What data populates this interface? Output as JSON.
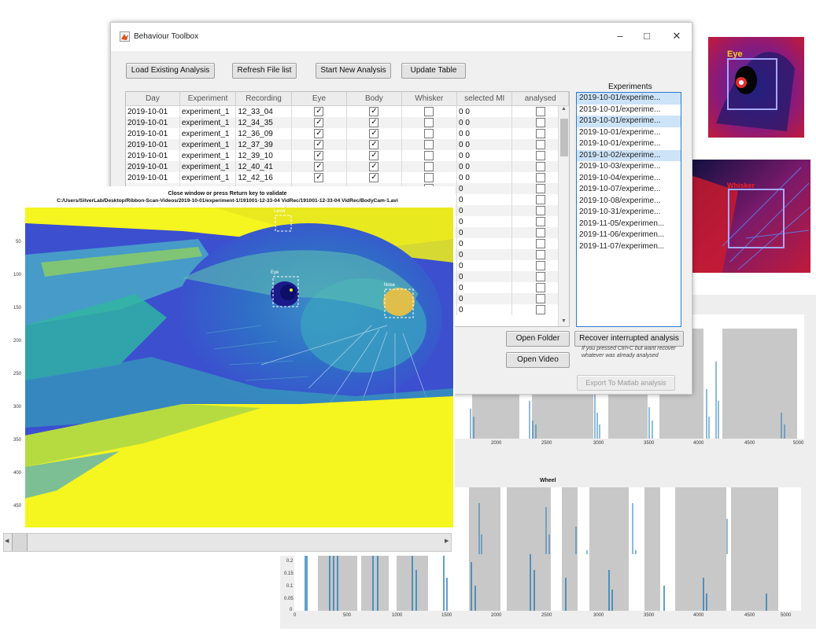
{
  "toolbox": {
    "title": "Behaviour Toolbox",
    "buttons": {
      "load": "Load Existing Analysis",
      "refresh": "Refresh File list",
      "start": "Start New Analysis",
      "update": "Update Table",
      "open_folder": "Open Folder",
      "open_video": "Open Video",
      "recover": "Recover interrupted analysis",
      "export": "Export To Matlab analysis"
    },
    "recover_note": "If you pressed Ctrl+C but want recover whatever was already analysed",
    "table": {
      "headers": [
        "Day",
        "Experiment",
        "Recording",
        "Eye",
        "Body",
        "Whisker",
        "selected MI",
        "analysed"
      ],
      "rows": [
        {
          "day": "2019-10-01",
          "experiment": "experiment_1",
          "recording": "12_33_04",
          "eye": "✓",
          "body": "✓",
          "whisker": "",
          "mi": "0 0",
          "analysed": ""
        },
        {
          "day": "2019-10-01",
          "experiment": "experiment_1",
          "recording": "12_34_35",
          "eye": "✓",
          "body": "✓",
          "whisker": "",
          "mi": "0 0",
          "analysed": ""
        },
        {
          "day": "2019-10-01",
          "experiment": "experiment_1",
          "recording": "12_36_09",
          "eye": "✓",
          "body": "✓",
          "whisker": "",
          "mi": "0 0",
          "analysed": ""
        },
        {
          "day": "2019-10-01",
          "experiment": "experiment_1",
          "recording": "12_37_39",
          "eye": "✓",
          "body": "✓",
          "whisker": "",
          "mi": "0 0",
          "analysed": ""
        },
        {
          "day": "2019-10-01",
          "experiment": "experiment_1",
          "recording": "12_39_10",
          "eye": "✓",
          "body": "✓",
          "whisker": "",
          "mi": "0 0",
          "analysed": ""
        },
        {
          "day": "2019-10-01",
          "experiment": "experiment_1",
          "recording": "12_40_41",
          "eye": "✓",
          "body": "✓",
          "whisker": "",
          "mi": "0 0",
          "analysed": ""
        },
        {
          "day": "2019-10-01",
          "experiment": "experiment_1",
          "recording": "12_42_16",
          "eye": "✓",
          "body": "✓",
          "whisker": "",
          "mi": "0 0",
          "analysed": ""
        }
      ],
      "hidden_mi": [
        "0",
        "0",
        "0",
        "0",
        "0",
        "0",
        "0",
        "0",
        "0",
        "0",
        "0",
        "0"
      ]
    },
    "experiments": {
      "title": "Experiments",
      "items": [
        {
          "label": "2019-10-01/experime...",
          "selected": true
        },
        {
          "label": "2019-10-01/experime...",
          "selected": false
        },
        {
          "label": "2019-10-01/experime...",
          "selected": true
        },
        {
          "label": "2019-10-01/experime...",
          "selected": false
        },
        {
          "label": "2019-10-01/experime...",
          "selected": false
        },
        {
          "label": "2019-10-02/experime...",
          "selected": true
        },
        {
          "label": "2019-10-03/experime...",
          "selected": false
        },
        {
          "label": "2019-10-04/experime...",
          "selected": false
        },
        {
          "label": "2019-10-07/experime...",
          "selected": false
        },
        {
          "label": "2019-10-08/experime...",
          "selected": false
        },
        {
          "label": "2019-10-31/experime...",
          "selected": false
        },
        {
          "label": "2019-11-05/experimen...",
          "selected": false
        },
        {
          "label": "2019-11-06/experimen...",
          "selected": false
        },
        {
          "label": "2019-11-07/experimen...",
          "selected": false
        }
      ]
    }
  },
  "viewer": {
    "title": "Close window or press Return key to validate",
    "path": "C:/Users/SilverLab/Desktop/Ribbon-Scan-Videos/2019-10-01/experiment-1/191001-12-33-04 VidRec/191001-12-33-04 VidRec/BodyCam-1.avi",
    "y_ticks": [
      "50",
      "100",
      "150",
      "200",
      "250",
      "300",
      "350",
      "400",
      "450"
    ],
    "roi_labels": {
      "eye": "Eye",
      "nose": "Nose",
      "lever": "Lever"
    }
  },
  "thumbnails": {
    "eye_label": "Eye",
    "whisker_label": "Whisker"
  },
  "plots": {
    "top_x_ticks": [
      "2000",
      "2500",
      "3000",
      "3500",
      "4000",
      "4500",
      "5000"
    ],
    "wheel_title": "Wheel",
    "bottom_x_ticks": [
      "0",
      "500",
      "1000",
      "1500",
      "2000",
      "2500",
      "3000",
      "3500",
      "4000",
      "4500",
      "5000"
    ],
    "bottom_y_ticks": [
      "0.2",
      "0.15",
      "0.1",
      "0.05",
      "0"
    ]
  },
  "colors": {
    "accent": "#2b7bd0",
    "trace": "#1f77b4",
    "shade": "#c8c8c8",
    "viridis_bg": "#3b4fcf",
    "viridis_yellow": "#f5f520"
  }
}
